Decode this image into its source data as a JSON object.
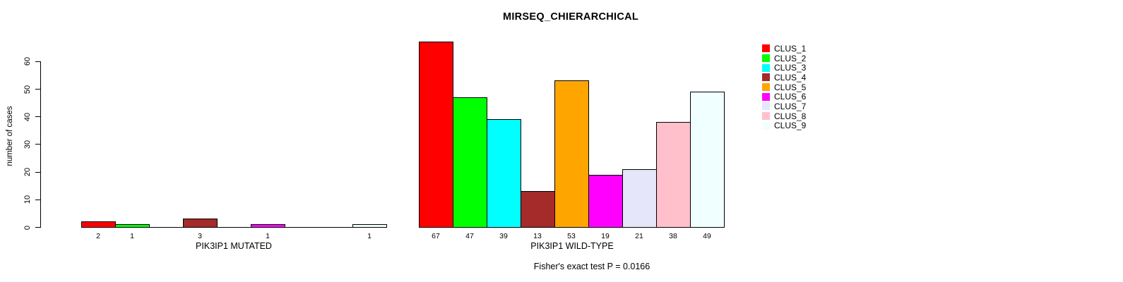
{
  "chart_data": {
    "type": "bar",
    "title": "MIRSEQ_CHIERARCHICAL",
    "ylabel": "number of cases",
    "annotation": "Fisher's exact test P = 0.0166",
    "yticks": [
      0,
      10,
      20,
      30,
      40,
      50,
      60
    ],
    "ylim": [
      0,
      67
    ],
    "grid": false,
    "legend_position": "right",
    "background": "#ffffff",
    "axis_color": "#000000",
    "clusters": [
      {
        "name": "CLUS_1",
        "color": "#FF0000"
      },
      {
        "name": "CLUS_2",
        "color": "#00FF00"
      },
      {
        "name": "CLUS_3",
        "color": "#00FFFF"
      },
      {
        "name": "CLUS_4",
        "color": "#A52A2A"
      },
      {
        "name": "CLUS_5",
        "color": "#FFA500"
      },
      {
        "name": "CLUS_6",
        "color": "#FF00FF"
      },
      {
        "name": "CLUS_7",
        "color": "#E6E6FA"
      },
      {
        "name": "CLUS_8",
        "color": "#FFC0CB"
      },
      {
        "name": "CLUS_9",
        "color": "#F0FFFF"
      }
    ],
    "groups": [
      {
        "label": "PIK3IP1 MUTATED",
        "values": [
          2,
          1,
          0,
          3,
          0,
          1,
          0,
          0,
          1
        ]
      },
      {
        "label": "PIK3IP1 WILD-TYPE",
        "values": [
          67,
          47,
          39,
          13,
          53,
          19,
          21,
          38,
          49
        ]
      }
    ]
  }
}
